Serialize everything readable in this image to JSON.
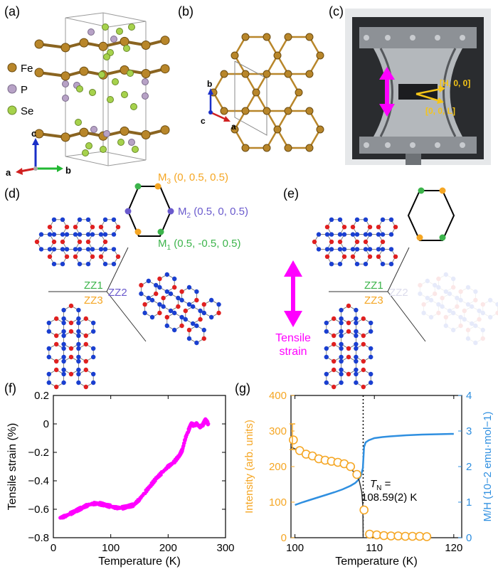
{
  "panels": {
    "a": "(a)",
    "b": "(b)",
    "c": "(c)",
    "d": "(d)",
    "e": "(e)",
    "f": "(f)",
    "g": "(g)"
  },
  "panel_a": {
    "legend": [
      {
        "label": "Fe",
        "color": "#b8862a"
      },
      {
        "label": "P",
        "color": "#b7a2c6"
      },
      {
        "label": "Se",
        "color": "#a6d24c"
      }
    ],
    "axes": {
      "a": "a",
      "b": "b",
      "c": "c"
    }
  },
  "panel_b": {
    "axes": {
      "a": "a",
      "b": "b",
      "c": "c"
    }
  },
  "panel_c": {
    "arrow_h": "[H, 0, 0]",
    "arrow_l": "[0, 0, L]"
  },
  "panel_d": {
    "m3": "M3 (0, 0.5, 0.5)",
    "m3_main": "M",
    "m3_sub": "3",
    "m3_coord": " (0, 0.5, 0.5)",
    "m2_main": "M",
    "m2_sub": "2",
    "m2_coord": " (0.5, 0, 0.5)",
    "m1_main": "M",
    "m1_sub": "1",
    "m1_coord": " (0.5, -0.5, 0.5)",
    "zz1": "ZZ1",
    "zz2": "ZZ2",
    "zz3": "ZZ3"
  },
  "panel_e": {
    "zz1": "ZZ1",
    "zz2": "ZZ2",
    "zz3": "ZZ3",
    "strain_line1": "Tensile",
    "strain_line2": "strain"
  },
  "colors": {
    "fe": "#b8862a",
    "zz1": "#3cb44b",
    "zz2": "#6a5acd",
    "zz3": "#f5a623",
    "strain": "#ff00ff",
    "mh": "#2f8fe0",
    "intensity": "#f5a623",
    "spin_up": "#e02020",
    "spin_down": "#1a3fd0"
  },
  "chart_data": [
    {
      "type": "scatter",
      "panel": "f",
      "xlabel": "Temperature (K)",
      "ylabel": "Tensile strain (%)",
      "xlim": [
        0,
        300
      ],
      "ylim": [
        -0.8,
        0.2
      ],
      "xticks": [
        "0",
        "100",
        "200",
        "300"
      ],
      "yticks": [
        "−0.8",
        "−0.6",
        "−0.4",
        "−0.2",
        "0",
        "0.2"
      ],
      "x": [
        12,
        20,
        30,
        40,
        50,
        60,
        70,
        80,
        90,
        100,
        110,
        120,
        130,
        140,
        150,
        160,
        170,
        180,
        190,
        200,
        210,
        220,
        225,
        230,
        235,
        240,
        245,
        250,
        255,
        260,
        265,
        270
      ],
      "y": [
        -0.66,
        -0.65,
        -0.63,
        -0.61,
        -0.59,
        -0.57,
        -0.56,
        -0.56,
        -0.57,
        -0.58,
        -0.59,
        -0.59,
        -0.58,
        -0.57,
        -0.53,
        -0.48,
        -0.43,
        -0.38,
        -0.34,
        -0.3,
        -0.27,
        -0.22,
        -0.18,
        -0.1,
        -0.05,
        0.0,
        -0.01,
        0.0,
        -0.02,
        -0.01,
        0.03,
        0.0
      ]
    },
    {
      "type": "line",
      "panel": "g",
      "xlabel": "Temperature (K)",
      "ylabel_left": "Intensity (arb. units)",
      "ylabel_right": "M/H (10−2 emu·mol−1)",
      "xlim": [
        99.5,
        121
      ],
      "ylim_left": [
        0,
        400
      ],
      "ylim_right": [
        0,
        4
      ],
      "xticks": [
        "100",
        "110",
        "120"
      ],
      "yticks_left": [
        "0",
        "100",
        "200",
        "300",
        "400"
      ],
      "yticks_right": [
        "0",
        "1",
        "2",
        "3",
        "4"
      ],
      "tn_label_line1": "T",
      "tn_sub": "N",
      "tn_label_eq": " =",
      "tn_value": "108.59(2) K",
      "tn": 108.59,
      "intensity_points": {
        "x": [
          99.8,
          100.6,
          101.4,
          102.2,
          103.0,
          103.8,
          104.6,
          105.4,
          106.2,
          107.0,
          107.8,
          108.7,
          109.4,
          110.3,
          111.2,
          112.1,
          113.0,
          113.9,
          114.8,
          115.7,
          116.6
        ],
        "y": [
          275,
          245,
          235,
          230,
          222,
          218,
          215,
          212,
          208,
          200,
          178,
          78,
          10,
          8,
          6,
          5,
          5,
          4,
          4,
          4,
          3
        ]
      },
      "intensity_fit": {
        "x": [
          99.5,
          101,
          102,
          103,
          104,
          105,
          106,
          107,
          107.6,
          108.1,
          108.4,
          108.55,
          108.59
        ],
        "y": [
          255,
          240,
          232,
          225,
          218,
          212,
          204,
          193,
          182,
          160,
          130,
          90,
          0
        ]
      },
      "mh_series": {
        "x": [
          100.0,
          101.0,
          102.0,
          103.0,
          104.0,
          105.0,
          106.0,
          107.0,
          107.6,
          108.0,
          108.3,
          108.55,
          108.7,
          108.9,
          109.3,
          110,
          111,
          112,
          114,
          116,
          118,
          120
        ],
        "y": [
          0.92,
          1.0,
          1.07,
          1.14,
          1.21,
          1.28,
          1.36,
          1.46,
          1.54,
          1.63,
          1.74,
          1.95,
          2.55,
          2.68,
          2.74,
          2.8,
          2.83,
          2.85,
          2.88,
          2.9,
          2.91,
          2.92
        ]
      }
    }
  ]
}
